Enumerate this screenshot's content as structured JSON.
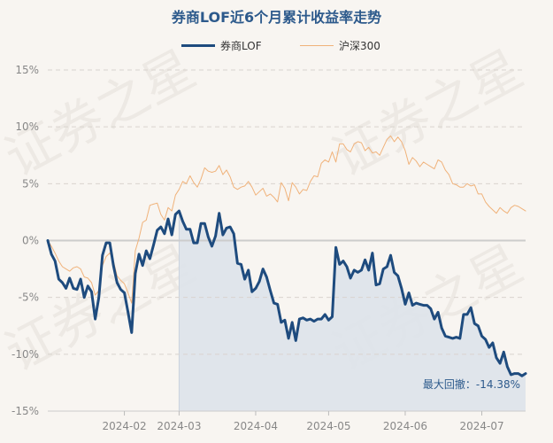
{
  "chart_data": {
    "type": "line",
    "title": "券商LOF近6个月累计收益率走势",
    "ylim": [
      -15,
      15
    ],
    "yticks": [
      15,
      10,
      5,
      0,
      -5,
      -10,
      -15
    ],
    "ytick_labels": [
      "15%",
      "10%",
      "5%",
      "0%",
      "-5%",
      "-10%",
      "-15%"
    ],
    "x_range": [
      0,
      131
    ],
    "xticks": [
      {
        "label": "2024-02",
        "x": 21
      },
      {
        "label": "2024-03",
        "x": 36
      },
      {
        "label": "2024-04",
        "x": 57
      },
      {
        "label": "2024-05",
        "x": 77
      },
      {
        "label": "2024-06",
        "x": 98
      },
      {
        "label": "2024-07",
        "x": 119
      }
    ],
    "series": [
      {
        "name": "券商LOF",
        "color": "#1e4b7e",
        "values": [
          0.0,
          -1.2,
          -1.8,
          -3.4,
          -3.7,
          -4.2,
          -3.3,
          -4.2,
          -4.3,
          -3.4,
          -5.0,
          -4.0,
          -4.5,
          -6.9,
          -5.0,
          -1.3,
          -0.2,
          -0.2,
          -2.2,
          -3.7,
          -4.3,
          -4.6,
          -6.3,
          -8.1,
          -2.9,
          -1.2,
          -2.2,
          -0.9,
          -1.6,
          -0.4,
          0.9,
          1.2,
          0.6,
          1.9,
          0.5,
          2.3,
          2.6,
          1.7,
          1.0,
          1.0,
          -0.2,
          -0.2,
          1.5,
          1.5,
          0.3,
          -0.5,
          0.4,
          2.4,
          0.5,
          1.1,
          1.2,
          0.6,
          -2.0,
          -2.1,
          -3.4,
          -2.6,
          -4.5,
          -4.2,
          -3.6,
          -2.5,
          -3.2,
          -4.4,
          -5.5,
          -5.6,
          -7.2,
          -7.0,
          -8.6,
          -7.2,
          -8.8,
          -6.9,
          -6.8,
          -7.0,
          -6.9,
          -7.1,
          -6.9,
          -6.9,
          -6.5,
          -7.0,
          -6.7,
          -0.6,
          -2.1,
          -1.8,
          -2.3,
          -3.3,
          -2.6,
          -2.8,
          -2.6,
          -1.7,
          -2.6,
          -1.1,
          -3.9,
          -3.8,
          -2.5,
          -2.3,
          -1.3,
          -2.8,
          -3.1,
          -4.2,
          -5.6,
          -4.6,
          -5.7,
          -5.5,
          -5.6,
          -5.7,
          -5.7,
          -6.0,
          -6.9,
          -6.3,
          -7.7,
          -8.4,
          -8.5,
          -8.6,
          -8.5,
          -8.6,
          -6.5,
          -6.5,
          -5.9,
          -7.3,
          -7.5,
          -8.4,
          -8.7,
          -9.4,
          -9.0,
          -10.3,
          -10.8,
          -9.8,
          -11.1,
          -11.8,
          -11.7,
          -11.7,
          -11.9,
          -11.7
        ]
      },
      {
        "name": "沪深300",
        "color": "#f0b27a",
        "values": [
          0.0,
          -0.5,
          -1.1,
          -1.8,
          -2.3,
          -2.5,
          -2.7,
          -2.4,
          -2.3,
          -2.5,
          -3.2,
          -3.3,
          -3.7,
          -4.8,
          -4.4,
          -2.2,
          -1.4,
          -1.1,
          -1.8,
          -3.1,
          -3.5,
          -3.8,
          -4.6,
          -5.5,
          -0.9,
          0.2,
          1.6,
          1.8,
          3.1,
          3.2,
          3.3,
          2.3,
          1.8,
          2.9,
          2.6,
          4.0,
          4.5,
          5.2,
          5.0,
          5.7,
          5.1,
          4.7,
          5.4,
          6.4,
          6.1,
          6.0,
          6.1,
          6.6,
          5.8,
          6.2,
          5.6,
          4.7,
          4.5,
          4.7,
          4.8,
          5.2,
          4.7,
          4.0,
          4.3,
          4.6,
          3.9,
          4.1,
          3.8,
          3.4,
          5.1,
          4.6,
          3.5,
          5.1,
          4.7,
          4.1,
          4.5,
          4.4,
          5.2,
          5.7,
          5.6,
          6.8,
          7.1,
          6.9,
          7.8,
          6.9,
          8.5,
          8.5,
          8.0,
          7.8,
          8.5,
          8.7,
          8.6,
          7.9,
          8.2,
          7.7,
          7.8,
          7.5,
          8.2,
          8.9,
          9.2,
          8.7,
          9.1,
          8.7,
          7.9,
          6.7,
          7.3,
          7.0,
          6.5,
          6.9,
          6.7,
          6.5,
          6.3,
          7.1,
          6.9,
          6.2,
          5.8,
          5.0,
          4.9,
          4.7,
          4.7,
          5.0,
          4.8,
          4.9,
          4.1,
          4.1,
          3.4,
          3.0,
          2.7,
          2.4,
          2.9,
          2.6,
          2.4,
          2.9,
          3.1,
          3.0,
          2.8,
          2.6
        ]
      }
    ],
    "shaded_region_start_x": 36,
    "annotation": {
      "text": "最大回撤：-14.38%"
    },
    "watermark": "证券之星"
  }
}
